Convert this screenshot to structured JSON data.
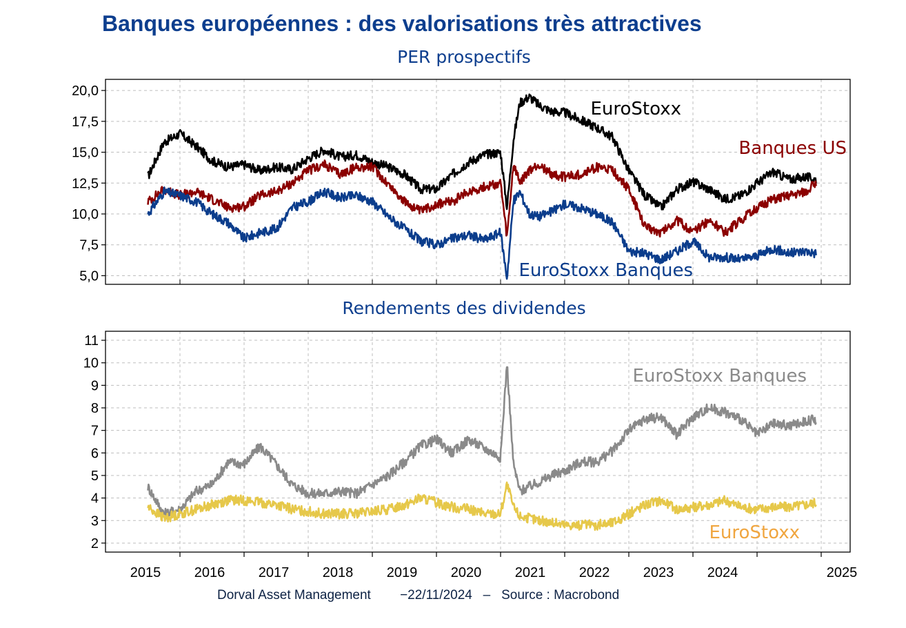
{
  "title": "Banques européennes : des valorisations très attractives",
  "footer": {
    "source_label": "Dorval Asset Management        −22/11/2024   –   Source : Macrobond"
  },
  "x_axis": {
    "ticks": [
      "2015",
      "2016",
      "2017",
      "2018",
      "2019",
      "2020",
      "2021",
      "2022",
      "2023",
      "2024",
      "2025"
    ],
    "range": [
      2014.5,
      2024.92
    ]
  },
  "colors": {
    "title": "#0d3e8e",
    "eurostoxx": "#000000",
    "banques_us": "#8b0000",
    "eurostoxx_banques": "#0b3d8c",
    "dy_banques": "#8a8a8a",
    "dy_eurostoxx": "#e6c84a",
    "dy_eurostoxx_label": "#f0a640"
  },
  "chart_data": [
    {
      "type": "line",
      "title": "PER prospectifs",
      "ylim": [
        4.3,
        20.9
      ],
      "yticks": [
        "5,0",
        "7,5",
        "10,0",
        "12,5",
        "15,0",
        "17,5",
        "20,0"
      ],
      "grid": true,
      "x": [
        2014.5,
        2014.75,
        2015.0,
        2015.25,
        2015.5,
        2015.75,
        2016.0,
        2016.25,
        2016.5,
        2016.75,
        2017.0,
        2017.25,
        2017.5,
        2017.75,
        2018.0,
        2018.25,
        2018.5,
        2018.75,
        2019.0,
        2019.25,
        2019.5,
        2019.75,
        2020.0,
        2020.1,
        2020.2,
        2020.3,
        2020.45,
        2020.6,
        2020.8,
        2021.0,
        2021.25,
        2021.5,
        2021.75,
        2022.0,
        2022.25,
        2022.5,
        2022.75,
        2023.0,
        2023.25,
        2023.5,
        2023.75,
        2024.0,
        2024.25,
        2024.5,
        2024.75,
        2024.92
      ],
      "series": [
        {
          "name": "EuroStoxx",
          "label": "EuroStoxx",
          "color": "#000000",
          "values": [
            13.0,
            15.8,
            16.5,
            15.5,
            14.3,
            13.8,
            14.0,
            13.5,
            13.8,
            13.6,
            14.5,
            15.2,
            14.6,
            14.8,
            14.2,
            13.8,
            13.2,
            12.0,
            12.0,
            13.2,
            14.2,
            14.8,
            15.0,
            10.5,
            16.0,
            19.0,
            19.5,
            18.8,
            18.3,
            18.2,
            17.6,
            17.0,
            16.2,
            13.5,
            11.5,
            10.5,
            12.0,
            12.6,
            12.0,
            11.2,
            11.5,
            12.5,
            13.4,
            12.8,
            13.0,
            12.8
          ]
        },
        {
          "name": "Banques US",
          "label": "Banques US",
          "color": "#8b0000",
          "values": [
            11.0,
            12.0,
            11.5,
            11.8,
            11.2,
            10.5,
            10.6,
            11.5,
            11.8,
            12.5,
            13.5,
            14.0,
            13.2,
            13.8,
            13.8,
            12.4,
            11.0,
            10.2,
            10.8,
            11.0,
            11.8,
            12.2,
            12.5,
            8.0,
            14.0,
            12.5,
            13.5,
            14.0,
            13.2,
            13.0,
            13.2,
            13.8,
            13.5,
            12.0,
            9.0,
            8.5,
            9.5,
            8.5,
            9.5,
            8.5,
            9.5,
            10.5,
            11.2,
            11.5,
            11.8,
            12.5
          ]
        },
        {
          "name": "EuroStoxx Banques",
          "label": "EuroStoxx Banques",
          "color": "#0b3d8c",
          "values": [
            10.0,
            11.8,
            11.5,
            11.0,
            10.0,
            9.3,
            8.0,
            8.5,
            8.8,
            10.5,
            11.0,
            11.8,
            11.3,
            11.5,
            11.0,
            9.8,
            8.8,
            7.8,
            7.5,
            8.0,
            8.3,
            7.9,
            8.5,
            4.8,
            11.0,
            11.8,
            10.0,
            9.8,
            10.2,
            10.8,
            10.5,
            10.0,
            9.3,
            7.0,
            6.8,
            6.3,
            7.0,
            7.8,
            6.5,
            6.5,
            6.3,
            6.6,
            7.2,
            6.8,
            7.0,
            6.8
          ]
        }
      ]
    },
    {
      "type": "line",
      "title": "Rendements des dividendes",
      "ylim": [
        1.6,
        11.4
      ],
      "yticks": [
        "2",
        "3",
        "4",
        "5",
        "6",
        "7",
        "8",
        "9",
        "10",
        "11"
      ],
      "grid": true,
      "x": [
        2014.5,
        2014.75,
        2015.0,
        2015.25,
        2015.5,
        2015.75,
        2016.0,
        2016.25,
        2016.5,
        2016.75,
        2017.0,
        2017.25,
        2017.5,
        2017.75,
        2018.0,
        2018.25,
        2018.5,
        2018.75,
        2019.0,
        2019.25,
        2019.5,
        2019.75,
        2020.0,
        2020.1,
        2020.2,
        2020.3,
        2020.45,
        2020.6,
        2020.8,
        2021.0,
        2021.25,
        2021.5,
        2021.75,
        2022.0,
        2022.25,
        2022.5,
        2022.75,
        2023.0,
        2023.25,
        2023.5,
        2023.75,
        2024.0,
        2024.25,
        2024.5,
        2024.75,
        2024.92
      ],
      "series": [
        {
          "name": "EuroStoxx Banques",
          "label": "EuroStoxx Banques",
          "color": "#8a8a8a",
          "values": [
            4.5,
            3.3,
            3.5,
            4.3,
            4.6,
            5.6,
            5.5,
            6.3,
            5.5,
            4.6,
            4.2,
            4.2,
            4.3,
            4.2,
            4.6,
            5.0,
            5.6,
            6.3,
            6.6,
            6.0,
            6.6,
            6.2,
            5.8,
            10.0,
            5.5,
            4.3,
            4.5,
            4.7,
            5.0,
            5.2,
            5.6,
            5.6,
            6.1,
            7.0,
            7.5,
            7.6,
            6.8,
            7.6,
            8.0,
            7.8,
            7.5,
            6.8,
            7.3,
            7.2,
            7.4,
            7.5
          ]
        },
        {
          "name": "EuroStoxx",
          "label": "EuroStoxx",
          "color": "#e6c84a",
          "values": [
            3.6,
            3.1,
            3.3,
            3.5,
            3.7,
            3.9,
            3.9,
            3.8,
            3.7,
            3.5,
            3.4,
            3.3,
            3.3,
            3.3,
            3.4,
            3.5,
            3.7,
            4.0,
            3.8,
            3.6,
            3.5,
            3.3,
            3.3,
            4.6,
            3.6,
            3.2,
            3.1,
            3.0,
            2.9,
            2.8,
            2.8,
            2.8,
            2.9,
            3.3,
            3.7,
            3.9,
            3.5,
            3.6,
            3.7,
            3.9,
            3.6,
            3.5,
            3.6,
            3.6,
            3.7,
            3.8
          ]
        }
      ]
    }
  ]
}
